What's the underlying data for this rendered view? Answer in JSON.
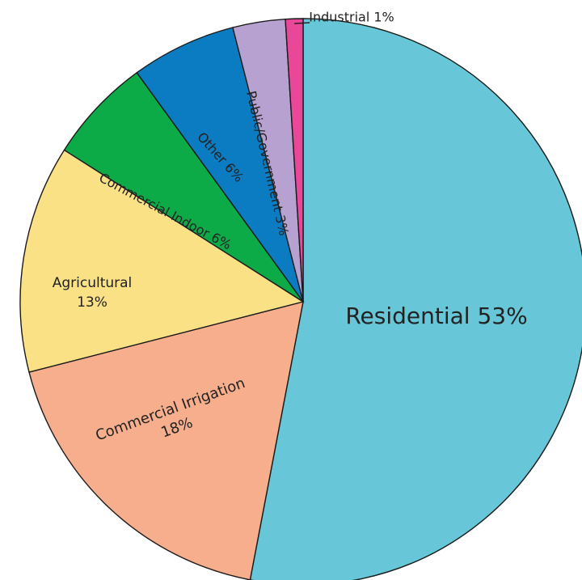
{
  "chart_data": {
    "type": "pie",
    "title": "",
    "slices": [
      {
        "label": "Residential 53%",
        "value": 53,
        "color": "#67C7D8"
      },
      {
        "label": "Commercial Irrigation\n18%",
        "value": 18,
        "color": "#F7AE8C"
      },
      {
        "label": "Agricultural\n13%",
        "value": 13,
        "color": "#FBE186"
      },
      {
        "label": "Commercial Indoor 6%",
        "value": 6,
        "color": "#0DAA48"
      },
      {
        "label": "Other 6%",
        "value": 6,
        "color": "#0B7BC2"
      },
      {
        "label": "Public/Government 3%",
        "value": 3,
        "color": "#B6A1D1"
      },
      {
        "label": "Industrial 1%",
        "value": 1,
        "color": "#E84897"
      }
    ],
    "legend": "none (labels on slices)"
  }
}
